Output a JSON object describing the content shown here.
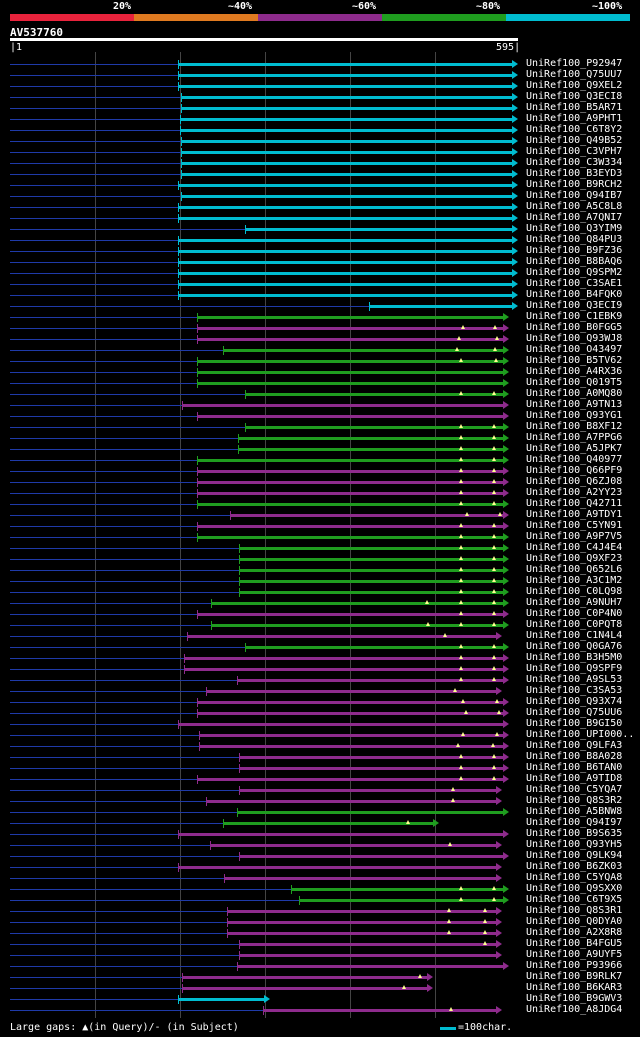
{
  "legend": {
    "labels": [
      "20%",
      "~40%",
      "~60%",
      "~80%",
      "~100%"
    ],
    "colors": [
      "#e8233c",
      "#e07a20",
      "#8e2b8c",
      "#1f9d1f",
      "#00bcd0"
    ]
  },
  "query": {
    "name": "AV537760",
    "start_label": "1",
    "end_label": "595",
    "length": 595
  },
  "hits": [
    {
      "label": "UniRef100_P92947",
      "start": 197,
      "end": 595,
      "cls": "c",
      "marks": []
    },
    {
      "label": "UniRef100_Q75UU7",
      "start": 197,
      "end": 595,
      "cls": "c",
      "marks": []
    },
    {
      "label": "UniRef100_Q9XEL2",
      "start": 197,
      "end": 595,
      "cls": "c",
      "marks": []
    },
    {
      "label": "UniRef100_Q3ECI8",
      "start": 200,
      "end": 595,
      "cls": "c",
      "marks": []
    },
    {
      "label": "UniRef100_B5AR71",
      "start": 200,
      "end": 595,
      "cls": "c",
      "marks": []
    },
    {
      "label": "UniRef100_A9PHT1",
      "start": 199,
      "end": 595,
      "cls": "c",
      "marks": []
    },
    {
      "label": "UniRef100_C6T8Y2",
      "start": 199,
      "end": 595,
      "cls": "c",
      "marks": []
    },
    {
      "label": "UniRef100_Q49B52",
      "start": 200,
      "end": 595,
      "cls": "c",
      "marks": []
    },
    {
      "label": "UniRef100_C3VPH7",
      "start": 200,
      "end": 595,
      "cls": "c",
      "marks": []
    },
    {
      "label": "UniRef100_C3W334",
      "start": 200,
      "end": 595,
      "cls": "c",
      "marks": []
    },
    {
      "label": "UniRef100_B3EYD3",
      "start": 200,
      "end": 595,
      "cls": "c",
      "marks": []
    },
    {
      "label": "UniRef100_B9RCH2",
      "start": 197,
      "end": 595,
      "cls": "c",
      "marks": []
    },
    {
      "label": "UniRef100_Q94IB7",
      "start": 200,
      "end": 595,
      "cls": "c",
      "marks": []
    },
    {
      "label": "UniRef100_A5C8L8",
      "start": 197,
      "end": 595,
      "cls": "c",
      "marks": []
    },
    {
      "label": "UniRef100_A7QNI7",
      "start": 197,
      "end": 595,
      "cls": "c",
      "marks": []
    },
    {
      "label": "UniRef100_Q3YIM9",
      "start": 275,
      "end": 595,
      "cls": "c",
      "marks": []
    },
    {
      "label": "UniRef100_Q84PU3",
      "start": 197,
      "end": 595,
      "cls": "c",
      "marks": []
    },
    {
      "label": "UniRef100_B9FZ36",
      "start": 197,
      "end": 595,
      "cls": "c",
      "marks": []
    },
    {
      "label": "UniRef100_B8BAQ6",
      "start": 197,
      "end": 595,
      "cls": "c",
      "marks": []
    },
    {
      "label": "UniRef100_Q9SPM2",
      "start": 197,
      "end": 595,
      "cls": "c",
      "marks": []
    },
    {
      "label": "UniRef100_C3SAE1",
      "start": 197,
      "end": 595,
      "cls": "c",
      "marks": []
    },
    {
      "label": "UniRef100_B4FQK0",
      "start": 197,
      "end": 595,
      "cls": "c",
      "marks": []
    },
    {
      "label": "UniRef100_Q3ECI9",
      "start": 420,
      "end": 595,
      "cls": "c",
      "marks": []
    },
    {
      "label": "UniRef100_C1EBK9",
      "start": 219,
      "end": 585,
      "cls": "g",
      "marks": []
    },
    {
      "label": "UniRef100_B0FGG5",
      "start": 219,
      "end": 585,
      "cls": "p",
      "marks": [
        530,
        568
      ]
    },
    {
      "label": "UniRef100_Q93WJ8",
      "start": 219,
      "end": 585,
      "cls": "p",
      "marks": [
        526,
        570
      ]
    },
    {
      "label": "UniRef100_O43497",
      "start": 250,
      "end": 585,
      "cls": "g",
      "marks": [
        523,
        568
      ]
    },
    {
      "label": "UniRef100_B5TV62",
      "start": 219,
      "end": 585,
      "cls": "g",
      "marks": [
        528,
        569
      ]
    },
    {
      "label": "UniRef100_A4RX36",
      "start": 219,
      "end": 585,
      "cls": "g",
      "marks": []
    },
    {
      "label": "UniRef100_Q019T5",
      "start": 219,
      "end": 585,
      "cls": "g",
      "marks": []
    },
    {
      "label": "UniRef100_A0MQ80",
      "start": 275,
      "end": 585,
      "cls": "g",
      "marks": [
        528,
        567
      ]
    },
    {
      "label": "UniRef100_A9TN13",
      "start": 202,
      "end": 585,
      "cls": "p",
      "marks": []
    },
    {
      "label": "UniRef100_Q93YG1",
      "start": 219,
      "end": 585,
      "cls": "p",
      "marks": []
    },
    {
      "label": "UniRef100_B8XF12",
      "start": 275,
      "end": 585,
      "cls": "g",
      "marks": [
        528,
        567
      ]
    },
    {
      "label": "UniRef100_A7PPG6",
      "start": 267,
      "end": 585,
      "cls": "g",
      "marks": [
        528,
        567
      ]
    },
    {
      "label": "UniRef100_A5JPK7",
      "start": 267,
      "end": 585,
      "cls": "g",
      "marks": [
        528,
        567
      ]
    },
    {
      "label": "UniRef100_Q40977",
      "start": 219,
      "end": 585,
      "cls": "g",
      "marks": [
        528,
        567
      ]
    },
    {
      "label": "UniRef100_Q66PF9",
      "start": 219,
      "end": 585,
      "cls": "p",
      "marks": [
        528,
        567
      ]
    },
    {
      "label": "UniRef100_Q6ZJ08",
      "start": 219,
      "end": 585,
      "cls": "p",
      "marks": [
        528,
        567
      ]
    },
    {
      "label": "UniRef100_A2YY23",
      "start": 219,
      "end": 585,
      "cls": "p",
      "marks": [
        528,
        567
      ]
    },
    {
      "label": "UniRef100_Q42711",
      "start": 219,
      "end": 585,
      "cls": "g",
      "marks": [
        528,
        567
      ]
    },
    {
      "label": "UniRef100_A9TDY1",
      "start": 258,
      "end": 585,
      "cls": "p",
      "marks": [
        535,
        574
      ]
    },
    {
      "label": "UniRef100_C5YN91",
      "start": 219,
      "end": 585,
      "cls": "p",
      "marks": [
        528,
        567
      ]
    },
    {
      "label": "UniRef100_A9P7V5",
      "start": 219,
      "end": 585,
      "cls": "g",
      "marks": [
        528,
        567
      ]
    },
    {
      "label": "UniRef100_C4J4E4",
      "start": 268,
      "end": 585,
      "cls": "g",
      "marks": [
        528,
        567
      ]
    },
    {
      "label": "UniRef100_Q9XF23",
      "start": 268,
      "end": 585,
      "cls": "g",
      "marks": [
        528,
        567
      ]
    },
    {
      "label": "UniRef100_Q652L6",
      "start": 268,
      "end": 585,
      "cls": "g",
      "marks": [
        528,
        567
      ]
    },
    {
      "label": "UniRef100_A3C1M2",
      "start": 268,
      "end": 585,
      "cls": "g",
      "marks": [
        528,
        567
      ]
    },
    {
      "label": "UniRef100_C0LQ98",
      "start": 268,
      "end": 585,
      "cls": "g",
      "marks": [
        528,
        567
      ]
    },
    {
      "label": "UniRef100_A9NUH7",
      "start": 236,
      "end": 585,
      "cls": "g",
      "marks": [
        488,
        528,
        567
      ]
    },
    {
      "label": "UniRef100_C0P4N0",
      "start": 219,
      "end": 585,
      "cls": "p",
      "marks": [
        528,
        567
      ]
    },
    {
      "label": "UniRef100_C0PQT8",
      "start": 236,
      "end": 585,
      "cls": "g",
      "marks": [
        490,
        528,
        567
      ]
    },
    {
      "label": "UniRef100_C1N4L4",
      "start": 207,
      "end": 576,
      "cls": "p",
      "marks": [
        510
      ]
    },
    {
      "label": "UniRef100_Q0GA76",
      "start": 275,
      "end": 585,
      "cls": "g",
      "marks": [
        528,
        567
      ]
    },
    {
      "label": "UniRef100_B3H5M0",
      "start": 204,
      "end": 585,
      "cls": "p",
      "marks": [
        528,
        567
      ]
    },
    {
      "label": "UniRef100_Q9SPF9",
      "start": 204,
      "end": 585,
      "cls": "p",
      "marks": [
        528,
        567
      ]
    },
    {
      "label": "UniRef100_A9SL53",
      "start": 266,
      "end": 585,
      "cls": "p",
      "marks": [
        528,
        567
      ]
    },
    {
      "label": "UniRef100_C3SA53",
      "start": 229,
      "end": 576,
      "cls": "p",
      "marks": [
        521
      ]
    },
    {
      "label": "UniRef100_Q93X74",
      "start": 219,
      "end": 585,
      "cls": "p",
      "marks": [
        530,
        570
      ]
    },
    {
      "label": "UniRef100_Q75UU6",
      "start": 219,
      "end": 585,
      "cls": "p",
      "marks": [
        534,
        573
      ]
    },
    {
      "label": "UniRef100_B9GI50",
      "start": 197,
      "end": 585,
      "cls": "p",
      "marks": []
    },
    {
      "label": "UniRef100_UPI000..",
      "start": 221,
      "end": 585,
      "cls": "p",
      "marks": [
        530,
        570
      ]
    },
    {
      "label": "UniRef100_Q9LFA3",
      "start": 221,
      "end": 585,
      "cls": "p",
      "marks": [
        525,
        566
      ]
    },
    {
      "label": "UniRef100_B8A028",
      "start": 268,
      "end": 585,
      "cls": "p",
      "marks": [
        528,
        567
      ]
    },
    {
      "label": "UniRef100_B6TAN0",
      "start": 268,
      "end": 585,
      "cls": "p",
      "marks": [
        528,
        567
      ]
    },
    {
      "label": "UniRef100_A9TID8",
      "start": 219,
      "end": 585,
      "cls": "p",
      "marks": [
        528,
        567
      ]
    },
    {
      "label": "UniRef100_C5YQA7",
      "start": 268,
      "end": 576,
      "cls": "p",
      "marks": [
        519
      ]
    },
    {
      "label": "UniRef100_Q8S3R2",
      "start": 230,
      "end": 576,
      "cls": "p",
      "marks": [
        519
      ]
    },
    {
      "label": "UniRef100_A5BNW8",
      "start": 266,
      "end": 585,
      "cls": "g",
      "marks": []
    },
    {
      "label": "UniRef100_Q94I97",
      "start": 250,
      "end": 503,
      "cls": "g",
      "marks": [
        466
      ]
    },
    {
      "label": "UniRef100_B9S635",
      "start": 197,
      "end": 585,
      "cls": "p",
      "marks": []
    },
    {
      "label": "UniRef100_Q93YH5",
      "start": 234,
      "end": 576,
      "cls": "p",
      "marks": [
        515
      ]
    },
    {
      "label": "UniRef100_Q9LK94",
      "start": 268,
      "end": 585,
      "cls": "p",
      "marks": []
    },
    {
      "label": "UniRef100_B6ZK03",
      "start": 197,
      "end": 576,
      "cls": "p",
      "marks": []
    },
    {
      "label": "UniRef100_C5YQA8",
      "start": 251,
      "end": 576,
      "cls": "p",
      "marks": []
    },
    {
      "label": "UniRef100_Q9SXX0",
      "start": 329,
      "end": 585,
      "cls": "g",
      "marks": [
        528,
        567
      ]
    },
    {
      "label": "UniRef100_C6T9X5",
      "start": 338,
      "end": 585,
      "cls": "g",
      "marks": [
        528,
        567
      ]
    },
    {
      "label": "UniRef100_Q8S3R1",
      "start": 254,
      "end": 576,
      "cls": "p",
      "marks": [
        514,
        556
      ]
    },
    {
      "label": "UniRef100_Q0DYA0",
      "start": 254,
      "end": 576,
      "cls": "p",
      "marks": [
        514,
        556
      ]
    },
    {
      "label": "UniRef100_A2X8R8",
      "start": 254,
      "end": 576,
      "cls": "p",
      "marks": [
        514,
        556
      ]
    },
    {
      "label": "UniRef100_B4FGU5",
      "start": 268,
      "end": 576,
      "cls": "p",
      "marks": [
        556
      ]
    },
    {
      "label": "UniRef100_A9UYF5",
      "start": 268,
      "end": 576,
      "cls": "p",
      "marks": []
    },
    {
      "label": "UniRef100_P93966",
      "start": 266,
      "end": 585,
      "cls": "p",
      "marks": []
    },
    {
      "label": "UniRef100_B9RLK7",
      "start": 201,
      "end": 496,
      "cls": "p",
      "marks": [
        480
      ]
    },
    {
      "label": "UniRef100_B6KAR3",
      "start": 201,
      "end": 496,
      "cls": "p",
      "marks": [
        462
      ]
    },
    {
      "label": "UniRef100_B9GWV3",
      "start": 197,
      "end": 304,
      "cls": "c",
      "marks": []
    },
    {
      "label": "UniRef100_A8JDG4",
      "start": 296,
      "end": 576,
      "cls": "p",
      "marks": [
        517
      ]
    }
  ],
  "footer": {
    "gaps_text": "Large gaps: ▲(in Query)/- (in Subject)",
    "scale_text": "=100char."
  }
}
